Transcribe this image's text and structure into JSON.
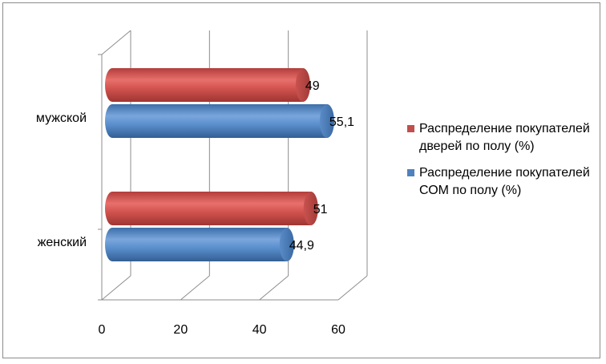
{
  "chart_data": {
    "type": "bar",
    "orientation": "horizontal",
    "style": "3d-cylinder",
    "categories": [
      "мужской",
      "женский"
    ],
    "series": [
      {
        "name": "Распределение покупателей дверей по полу (%)",
        "values": [
          49,
          51
        ],
        "color": "#c0504d"
      },
      {
        "name": "Распределение покупателей СОМ по полу (%)",
        "values": [
          55.1,
          44.9
        ],
        "color": "#4f81bd"
      }
    ],
    "value_labels": {
      "мужской": [
        "49",
        "55,1"
      ],
      "женский": [
        "51",
        "44,9"
      ]
    },
    "x_ticks": [
      "0",
      "20",
      "40",
      "60"
    ],
    "xlim": [
      0,
      60
    ],
    "grid": true,
    "legend": "right",
    "title": "",
    "xlabel": "",
    "ylabel": ""
  }
}
